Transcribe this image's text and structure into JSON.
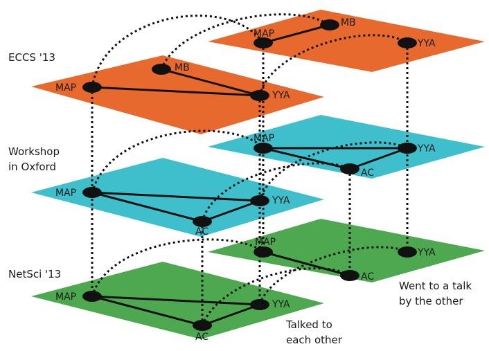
{
  "colors": {
    "eccs": "#e8692e",
    "oxford": "#3fbfcc",
    "netsci": "#4ea84f",
    "ink": "#111111"
  },
  "layers": {
    "eccs": {
      "name": "ECCS '13"
    },
    "oxford": {
      "name_line1": "Workshop",
      "name_line2": "in Oxford"
    },
    "netsci": {
      "name": "NetSci '13"
    }
  },
  "nodes": {
    "map": "MAP",
    "yya": "YYA",
    "mb": "MB",
    "ac": "AC"
  },
  "legend": {
    "talk_line1": "Went to a talk",
    "talk_line2": "by the other",
    "talked_line1": "Talked to",
    "talked_line2": "each other"
  }
}
